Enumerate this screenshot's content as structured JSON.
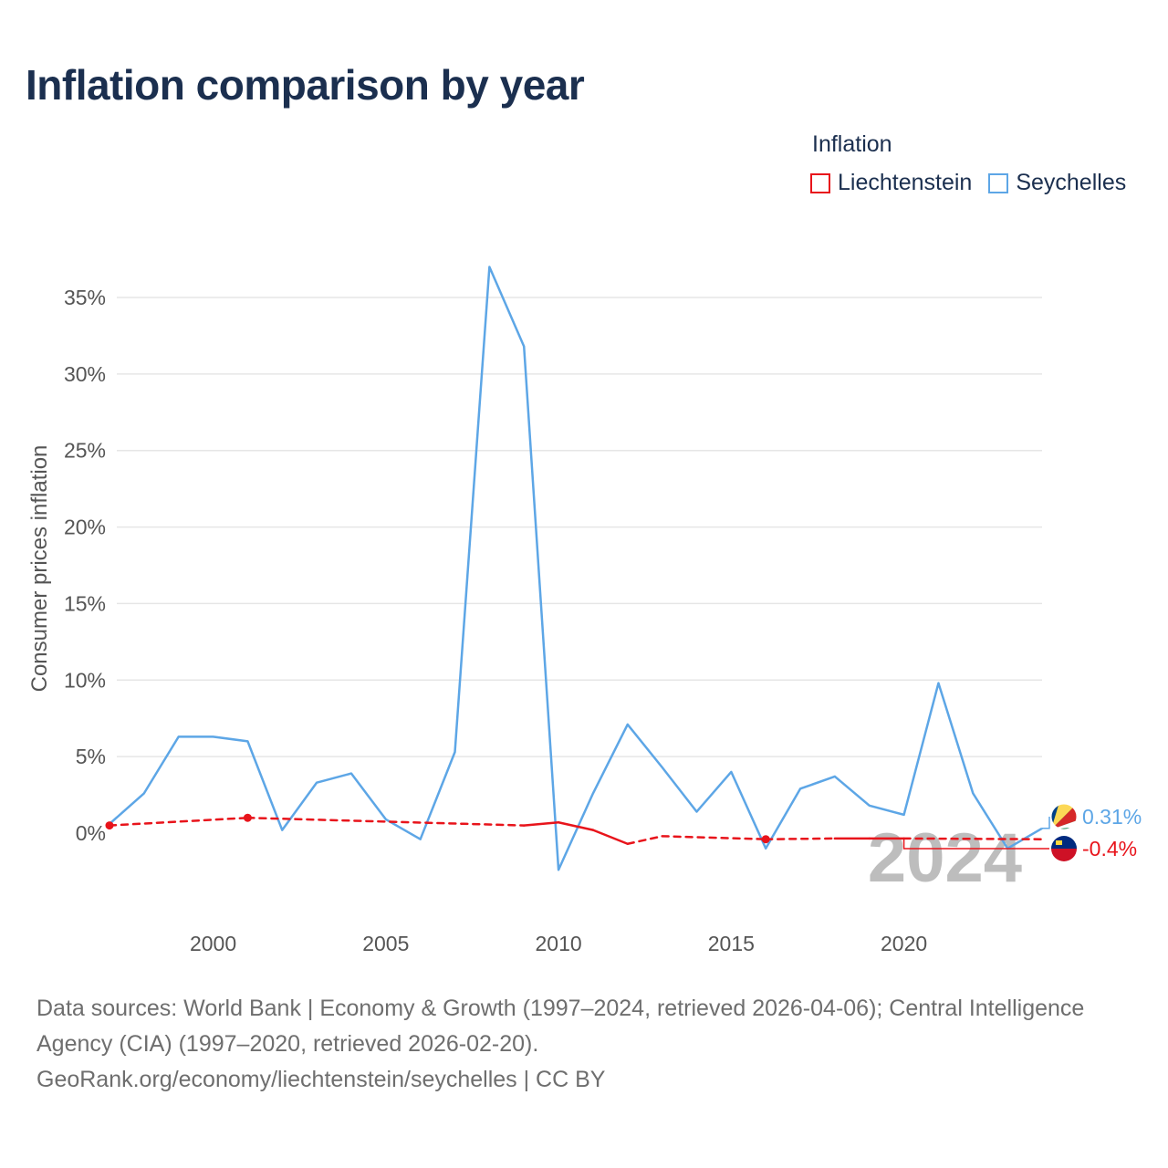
{
  "title": "Inflation comparison by year",
  "legend": {
    "title": "Inflation",
    "items": [
      {
        "label": "Liechtenstein",
        "color": "#e8141b"
      },
      {
        "label": "Seychelles",
        "color": "#5da6e6"
      }
    ]
  },
  "year_label": "2024",
  "source": {
    "line1": "Data sources: World Bank | Economy & Growth (1997–2024, retrieved 2026-04-06); Central Intelligence Agency (CIA) (1997–2020, retrieved 2026-02-20).",
    "line2": "GeoRank.org/economy/liechtenstein/seychelles | CC BY"
  },
  "chart_data": {
    "type": "line",
    "title": "Inflation comparison by year",
    "xlabel": "",
    "ylabel": "Consumer prices inflation",
    "xlim": [
      1997,
      2024
    ],
    "ylim": [
      -5,
      38
    ],
    "x_ticks": [
      2000,
      2005,
      2010,
      2015,
      2020
    ],
    "y_ticks": [
      0,
      5,
      10,
      15,
      20,
      25,
      30,
      35
    ],
    "y_tick_labels": [
      "0%",
      "5%",
      "10%",
      "15%",
      "20%",
      "25%",
      "30%",
      "35%"
    ],
    "grid": true,
    "legend_position": "top-right",
    "series": [
      {
        "name": "Seychelles",
        "color": "#5da6e6",
        "end_label": "0.31%",
        "points": [
          [
            1997,
            0.6
          ],
          [
            1998,
            2.6
          ],
          [
            1999,
            6.3
          ],
          [
            2000,
            6.3
          ],
          [
            2001,
            6.0
          ],
          [
            2002,
            0.2
          ],
          [
            2003,
            3.3
          ],
          [
            2004,
            3.9
          ],
          [
            2005,
            0.9
          ],
          [
            2006,
            -0.4
          ],
          [
            2007,
            5.3
          ],
          [
            2008,
            37.0
          ],
          [
            2009,
            31.8
          ],
          [
            2010,
            -2.4
          ],
          [
            2011,
            2.6
          ],
          [
            2012,
            7.1
          ],
          [
            2013,
            4.3
          ],
          [
            2014,
            1.4
          ],
          [
            2015,
            4.0
          ],
          [
            2016,
            -1.0
          ],
          [
            2017,
            2.9
          ],
          [
            2018,
            3.7
          ],
          [
            2019,
            1.8
          ],
          [
            2020,
            1.2
          ],
          [
            2021,
            9.8
          ],
          [
            2022,
            2.6
          ],
          [
            2023,
            -1.0
          ],
          [
            2024,
            0.31
          ]
        ]
      },
      {
        "name": "Liechtenstein",
        "color": "#e8141b",
        "end_label": "-0.4%",
        "solid_segments": [
          [
            2009,
            2012
          ],
          [
            2013,
            2013
          ],
          [
            2018,
            2020
          ]
        ],
        "markers": [
          1997,
          2001,
          2016
        ],
        "points": [
          [
            1997,
            0.5
          ],
          [
            2001,
            1.0
          ],
          [
            2009,
            0.5
          ],
          [
            2010,
            0.7
          ],
          [
            2011,
            0.2
          ],
          [
            2012,
            -0.7
          ],
          [
            2013,
            -0.2
          ],
          [
            2016,
            -0.4
          ],
          [
            2018,
            -0.35
          ],
          [
            2019,
            -0.35
          ],
          [
            2020,
            -0.35
          ],
          [
            2024,
            -0.4
          ]
        ]
      }
    ]
  }
}
